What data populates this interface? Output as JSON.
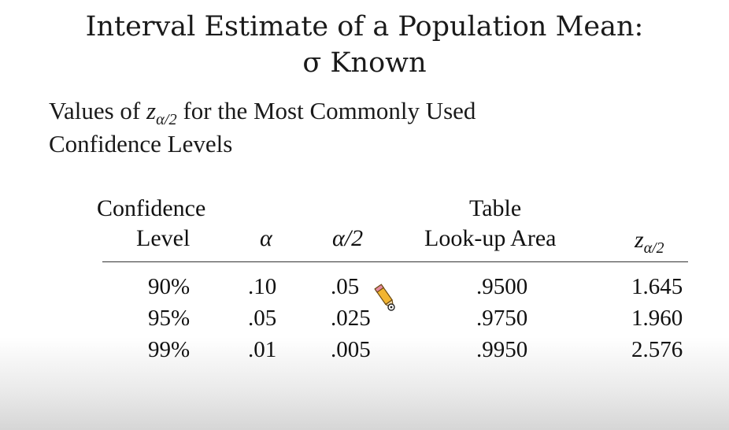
{
  "title": {
    "line1": "Interval Estimate of a Population Mean:",
    "line2": "σ Known"
  },
  "subtitle": {
    "line1_before": "Values of ",
    "z_symbol": "z",
    "z_subscript": "α/2",
    "line1_after": " for the Most Commonly Used",
    "line2": "Confidence Levels"
  },
  "table": {
    "headers": {
      "confidence_line1": "Confidence",
      "confidence_line2": "Level",
      "alpha": "α",
      "alpha_half": "α/2",
      "lookup_line1": "Table",
      "lookup_line2": "Look-up Area",
      "z_symbol": "z",
      "z_subscript": "α/2"
    },
    "rows": [
      {
        "level": "90%",
        "alpha": ".10",
        "alpha_half": ".05",
        "area": ".9500",
        "z": "1.645"
      },
      {
        "level": "95%",
        "alpha": ".05",
        "alpha_half": ".025",
        "area": ".9750",
        "z": "1.960"
      },
      {
        "level": "99%",
        "alpha": ".01",
        "alpha_half": ".005",
        "area": ".9950",
        "z": "2.576"
      }
    ]
  },
  "cursor": {
    "icon": "pencil-cursor-icon"
  }
}
